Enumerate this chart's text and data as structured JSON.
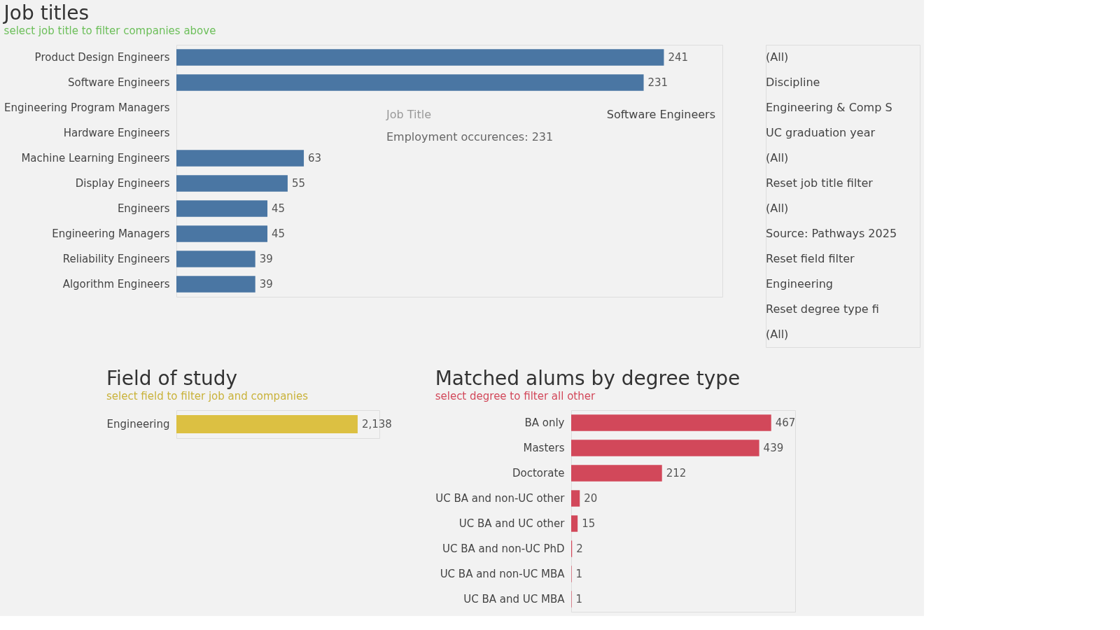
{
  "chart_data": [
    {
      "type": "bar",
      "orientation": "horizontal",
      "title": "Job titles",
      "subtitle": "select job title to filter companies above",
      "color": "#4a76a3",
      "data_labels": true,
      "grid": false,
      "categories": [
        "Product Design Engineers",
        "Software Engineers",
        "Engineering Program Managers",
        "Hardware Engineers",
        "Machine Learning Engineers",
        "Display Engineers",
        "Engineers",
        "Engineering Managers",
        "Reliability Engineers",
        "Algorithm Engineers"
      ],
      "values": [
        241,
        231,
        null,
        null,
        63,
        55,
        45,
        45,
        39,
        39
      ],
      "annotations": [
        "Job Title",
        "Software Engineers",
        "Employment occurences: 231"
      ]
    },
    {
      "type": "other",
      "annotations": [
        "(All)",
        "Discipline",
        "Engineering & Comp S",
        "UC graduation year",
        "(All)",
        "Reset job title filter",
        "(All)",
        "Source: Pathways 2025",
        "Reset field filter",
        "Engineering",
        "Reset degree type fi",
        "(All)"
      ]
    },
    {
      "type": "bar",
      "orientation": "horizontal",
      "title": "Field of study",
      "subtitle": "select field to filter job and companies",
      "color": "#dcc042",
      "grid": false,
      "categories": [
        "Engineering"
      ],
      "values": [
        2138
      ],
      "value_labels": [
        "2,138"
      ]
    },
    {
      "type": "bar",
      "orientation": "horizontal",
      "title": "Matched alums by degree type",
      "subtitle": "select degree to filter all other",
      "color": "#d2485a",
      "data_labels": true,
      "grid": false,
      "categories": [
        "BA only",
        "Masters",
        "Doctorate",
        "UC BA and non-UC other",
        "UC BA and UC other",
        "UC BA and non-UC PhD",
        "UC BA and non-UC MBA",
        "UC BA and UC MBA"
      ],
      "values": [
        467,
        439,
        212,
        20,
        15,
        2,
        1,
        1
      ]
    }
  ]
}
